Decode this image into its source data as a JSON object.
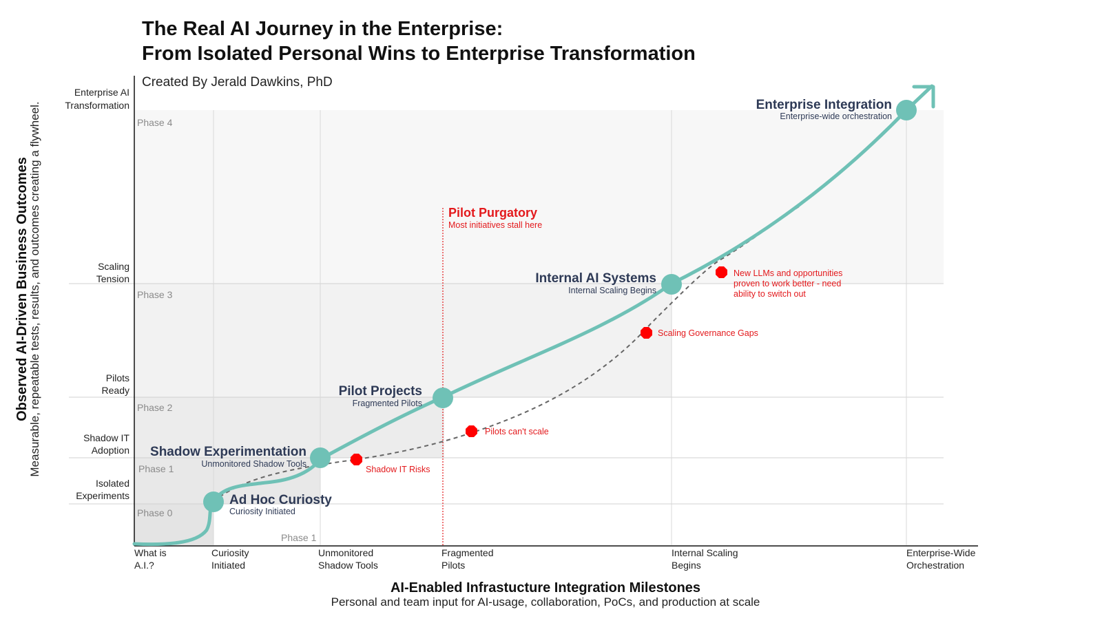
{
  "title_line1": "The Real AI Journey in the Enterprise:",
  "title_line2": "From Isolated Personal Wins to Enterprise Transformation",
  "credit": "Created By Jerald Dawkins, PhD",
  "colors": {
    "curve": "#6fc1b6",
    "node": "#6fc1b6",
    "risk": "#ff0000",
    "accent_red": "#e3191c",
    "node_text": "#2e3a56",
    "band_light": "#f5f5f5",
    "band_dark": "#ededed"
  },
  "y_axis": {
    "title": "Observed AI-Driven Business Outcomes",
    "subtitle": "Measurable, repeatable tests, results, and outcomes creating a flywheel.",
    "levels": [
      {
        "line1": "Isolated",
        "line2": "Experiments"
      },
      {
        "line1": "Shadow IT",
        "line2": "Adoption"
      },
      {
        "line1": "Pilots",
        "line2": "Ready"
      },
      {
        "line1": "Scaling",
        "line2": "Tension"
      },
      {
        "line1": "Enterprise AI",
        "line2": "Transformation"
      }
    ]
  },
  "x_axis": {
    "title": "AI-Enabled Infrastucture Integration Milestones",
    "subtitle": "Personal and team input for AI-usage, collaboration, PoCs, and production at scale",
    "milestones": [
      {
        "line1": "What is",
        "line2": "A.I.?"
      },
      {
        "line1": "Curiosity",
        "line2": "Initiated"
      },
      {
        "line1": "Unmonitored",
        "line2": "Shadow Tools"
      },
      {
        "line1": "Fragmented",
        "line2": "Pilots"
      },
      {
        "line1": "Internal Scaling",
        "line2": "Begins"
      },
      {
        "line1": "Enterprise-Wide",
        "line2": "Orchestration"
      }
    ]
  },
  "phases": {
    "p0": "Phase 0",
    "p1": "Phase 1",
    "p1b": "Phase 1",
    "p2": "Phase 2",
    "p3": "Phase 3",
    "p4": "Phase 4"
  },
  "nodes": [
    {
      "title": "Ad Hoc Curiosty",
      "subtitle": "Curiosity Initiated"
    },
    {
      "title": "Shadow Experimentation",
      "subtitle": "Unmonitored Shadow Tools"
    },
    {
      "title": "Pilot Projects",
      "subtitle": "Fragmented Pilots"
    },
    {
      "title": "Internal AI Systems",
      "subtitle": "Internal Scaling Begins"
    },
    {
      "title": "Enterprise Integration",
      "subtitle": "Enterprise-wide orchestration"
    }
  ],
  "pilot_purgatory": {
    "title": "Pilot Purgatory",
    "subtitle": "Most initiatives stall here"
  },
  "risks": [
    {
      "lines": [
        "Shadow IT Risks"
      ]
    },
    {
      "lines": [
        "Pilots can't scale"
      ]
    },
    {
      "lines": [
        "Scaling Governance Gaps"
      ]
    },
    {
      "lines": [
        "New LLMs and opportunities",
        "proven to work better - need",
        "ability to switch out"
      ]
    }
  ]
}
